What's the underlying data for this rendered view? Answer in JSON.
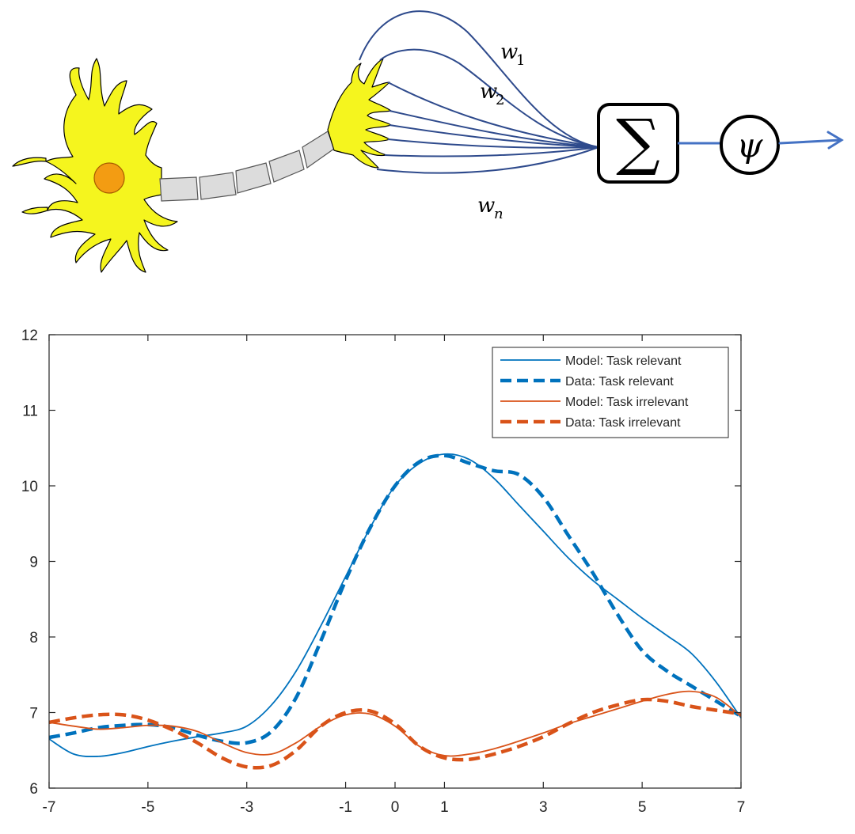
{
  "diagram": {
    "weight_labels": [
      {
        "var": "w",
        "sub": "1"
      },
      {
        "var": "w",
        "sub": "2"
      },
      {
        "var": "w",
        "sub": "n"
      }
    ],
    "sum_symbol": "∑",
    "activation_symbol": "ψ",
    "colors": {
      "neuron_body": "#f5f51e",
      "nucleus": "#f39c12",
      "axon_segment": "#dcdcdc",
      "weight_lines": "#2e4a8c",
      "output_arrow": "#4472c4"
    }
  },
  "chart_data": {
    "type": "line",
    "title": "",
    "xlabel": "",
    "ylabel": "",
    "xlim": [
      -7,
      7
    ],
    "ylim": [
      6,
      12
    ],
    "xticks": [
      -7,
      -5,
      -3,
      -1,
      0,
      1,
      3,
      5,
      7
    ],
    "yticks": [
      6,
      7,
      8,
      9,
      10,
      11,
      12
    ],
    "grid": false,
    "legend_position": "top-right",
    "series": [
      {
        "name": "Model: Task relevant",
        "color": "#0072bd",
        "style": "solid",
        "x": [
          -7,
          -6.5,
          -6,
          -5.5,
          -5,
          -4.5,
          -4,
          -3.5,
          -3,
          -2.5,
          -2,
          -1.5,
          -1,
          -0.5,
          0,
          0.5,
          1,
          1.5,
          2,
          2.5,
          3,
          3.5,
          4,
          4.5,
          5,
          5.5,
          6,
          6.5,
          7
        ],
        "y": [
          6.65,
          6.45,
          6.42,
          6.47,
          6.55,
          6.62,
          6.68,
          6.73,
          6.82,
          7.1,
          7.55,
          8.15,
          8.8,
          9.45,
          10.0,
          10.3,
          10.42,
          10.35,
          10.1,
          9.75,
          9.4,
          9.05,
          8.75,
          8.5,
          8.25,
          8.02,
          7.78,
          7.4,
          6.93
        ]
      },
      {
        "name": "Data: Task relevant",
        "color": "#0072bd",
        "style": "dashed",
        "x": [
          -7,
          -6.5,
          -6,
          -5.5,
          -5,
          -4.5,
          -4,
          -3.5,
          -3,
          -2.5,
          -2,
          -1.5,
          -1,
          -0.5,
          0,
          0.5,
          1,
          1.5,
          2,
          2.5,
          3,
          3.5,
          4,
          4.5,
          5,
          5.5,
          6,
          6.5,
          7
        ],
        "y": [
          6.67,
          6.73,
          6.8,
          6.83,
          6.84,
          6.8,
          6.7,
          6.62,
          6.6,
          6.75,
          7.2,
          7.95,
          8.75,
          9.45,
          10.0,
          10.32,
          10.4,
          10.3,
          10.2,
          10.15,
          9.85,
          9.35,
          8.85,
          8.3,
          7.82,
          7.55,
          7.35,
          7.15,
          6.95
        ]
      },
      {
        "name": "Model: Task irrelevant",
        "color": "#d95319",
        "style": "solid",
        "x": [
          -7,
          -6.5,
          -6,
          -5.5,
          -5,
          -4.5,
          -4,
          -3.5,
          -3,
          -2.5,
          -2,
          -1.5,
          -1,
          -0.5,
          0,
          0.5,
          1,
          1.5,
          2,
          2.5,
          3,
          3.5,
          4,
          4.5,
          5,
          5.5,
          6,
          6.5,
          7
        ],
        "y": [
          6.87,
          6.82,
          6.78,
          6.8,
          6.83,
          6.82,
          6.75,
          6.6,
          6.47,
          6.45,
          6.6,
          6.82,
          6.97,
          6.98,
          6.82,
          6.55,
          6.43,
          6.45,
          6.52,
          6.62,
          6.73,
          6.85,
          6.95,
          7.05,
          7.15,
          7.24,
          7.28,
          7.2,
          6.95
        ]
      },
      {
        "name": "Data: Task irrelevant",
        "color": "#d95319",
        "style": "dashed",
        "x": [
          -7,
          -6.5,
          -6,
          -5.5,
          -5,
          -4.5,
          -4,
          -3.5,
          -3,
          -2.5,
          -2,
          -1.5,
          -1,
          -0.5,
          0,
          0.5,
          1,
          1.5,
          2,
          2.5,
          3,
          3.5,
          4,
          4.5,
          5,
          5.5,
          6,
          6.5,
          7
        ],
        "y": [
          6.87,
          6.93,
          6.97,
          6.97,
          6.9,
          6.77,
          6.6,
          6.4,
          6.28,
          6.3,
          6.5,
          6.82,
          7.0,
          7.02,
          6.85,
          6.55,
          6.4,
          6.38,
          6.45,
          6.55,
          6.68,
          6.85,
          7.0,
          7.1,
          7.17,
          7.15,
          7.08,
          7.03,
          6.98
        ]
      }
    ]
  }
}
